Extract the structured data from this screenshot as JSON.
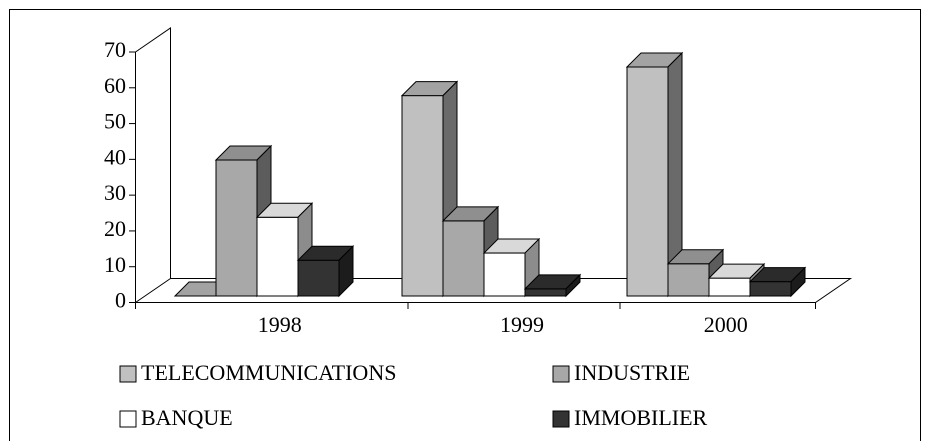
{
  "chart_data": {
    "type": "bar3d",
    "categories": [
      "1998",
      "1999",
      "2000"
    ],
    "series": [
      {
        "name": "TELECOMMUNICATIONS",
        "color": "#c0c0c0",
        "values": [
          0,
          56,
          64
        ]
      },
      {
        "name": "INDUSTRIE",
        "color": "#a8a8a8",
        "values": [
          38,
          21,
          9
        ]
      },
      {
        "name": "BANQUE",
        "color": "#ffffff",
        "values": [
          22,
          12,
          5
        ]
      },
      {
        "name": "IMMOBILIER",
        "color": "#333333",
        "values": [
          10,
          2,
          4
        ]
      }
    ],
    "ylim": [
      0,
      70
    ],
    "yticks": [
      0,
      10,
      20,
      30,
      40,
      50,
      60,
      70
    ]
  }
}
